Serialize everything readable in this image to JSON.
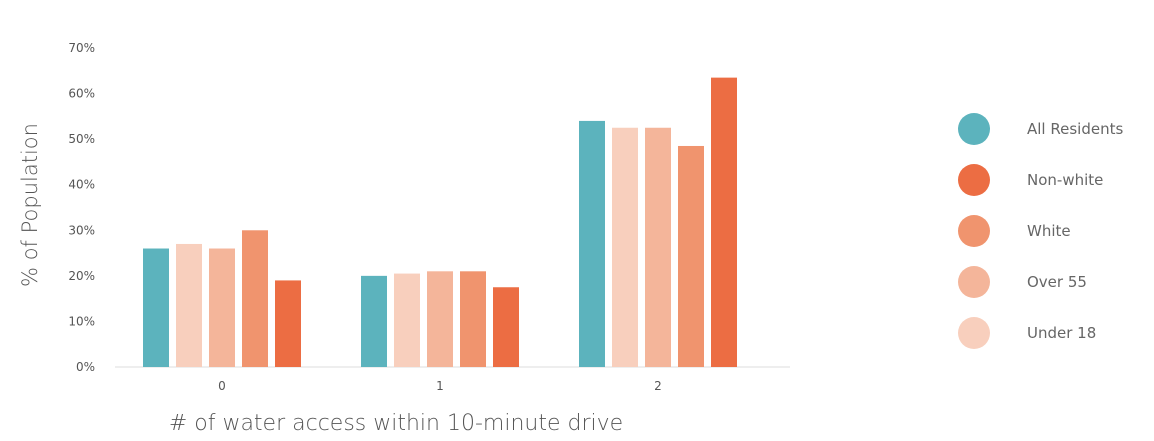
{
  "chart_data": {
    "type": "bar",
    "categories": [
      "0",
      "1",
      "2"
    ],
    "series": [
      {
        "name": "All Residents",
        "color": "#5cb3bd",
        "values": [
          26,
          20,
          54
        ]
      },
      {
        "name": "Under 18",
        "color": "#f8cfbd",
        "values": [
          27,
          20.5,
          52.5
        ]
      },
      {
        "name": "Over 55",
        "color": "#f4b59a",
        "values": [
          26,
          21,
          52.5
        ]
      },
      {
        "name": "White",
        "color": "#f0946e",
        "values": [
          30,
          21,
          48.5
        ]
      },
      {
        "name": "Non-white",
        "color": "#ec6d43",
        "values": [
          19,
          17.5,
          63.5
        ]
      }
    ],
    "legend_order": [
      "All Residents",
      "Non-white",
      "White",
      "Over 55",
      "Under 18"
    ],
    "xlabel": "# of water access within 10-minute drive",
    "ylabel": "% of Population",
    "ylim": [
      0,
      70
    ],
    "yticks": [
      "0%",
      "10%",
      "20%",
      "30%",
      "40%",
      "50%",
      "60%",
      "70%"
    ],
    "grid": false,
    "legend_position": "right"
  }
}
